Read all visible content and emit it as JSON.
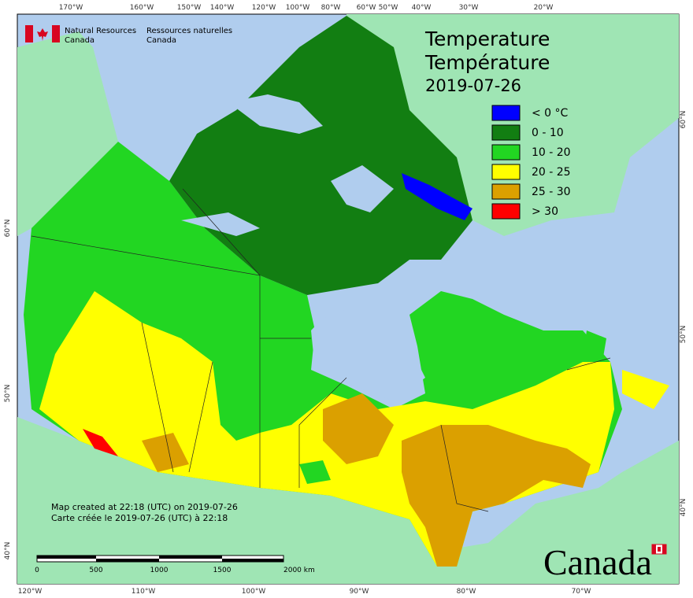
{
  "header": {
    "agency_en": [
      "Natural Resources",
      "Canada"
    ],
    "agency_fr": [
      "Ressources naturelles",
      "Canada"
    ]
  },
  "title": {
    "en": "Temperature",
    "fr": "Température",
    "date": "2019-07-26"
  },
  "legend": [
    {
      "label": "< 0 °C",
      "color": "#0000ff"
    },
    {
      "label": "0 - 10",
      "color": "#127e12"
    },
    {
      "label": "10 - 20",
      "color": "#22d622"
    },
    {
      "label": "20 - 25",
      "color": "#ffff00"
    },
    {
      "label": "25 - 30",
      "color": "#dba000"
    },
    {
      "label": "> 30",
      "color": "#ff0000"
    }
  ],
  "top_labels": [
    "170°W",
    "160°W",
    "150°W",
    "140°W",
    "120°W",
    "100°W",
    "80°W",
    "60°W",
    "50°W",
    "40°W",
    "30°W",
    "20°W"
  ],
  "bottom_labels": [
    "120°W",
    "110°W",
    "100°W",
    "90°W",
    "80°W",
    "70°W"
  ],
  "left_labels": [
    "60°N",
    "50°N",
    "40°N"
  ],
  "right_labels": [
    "60°N",
    "50°N",
    "40°N"
  ],
  "footer": [
    "Map created at 22:18 (UTC) on 2019-07-26",
    "Carte créée le 2019-07-26 (UTC) à 22:18"
  ],
  "scale_bar": [
    "0",
    "500",
    "1000",
    "1500",
    "2000 km"
  ],
  "wordmark": "Canada"
}
